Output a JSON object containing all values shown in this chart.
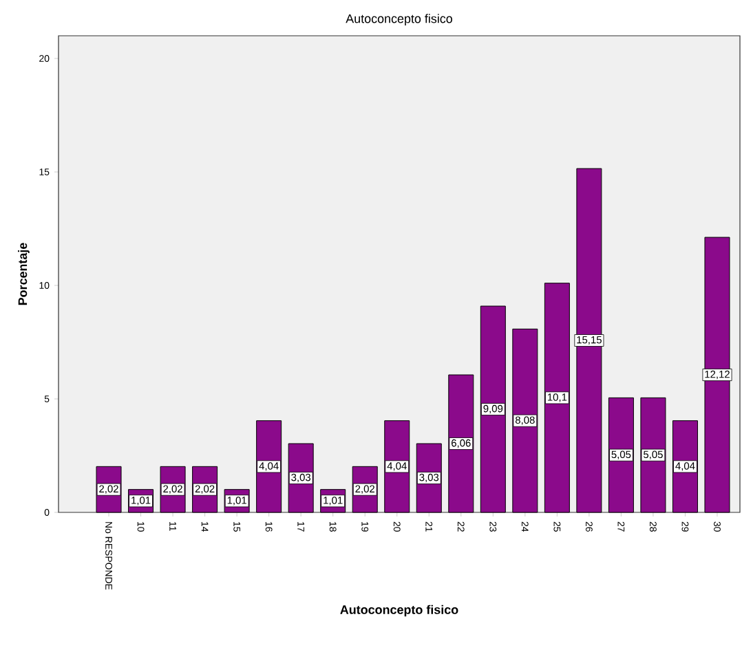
{
  "chart_data": {
    "type": "bar",
    "title": "Autoconcepto fisico",
    "xlabel": "Autoconcepto fisico",
    "ylabel": "Porcentaje",
    "categories": [
      "No RESPONDE",
      "10",
      "11",
      "14",
      "15",
      "16",
      "17",
      "18",
      "19",
      "20",
      "21",
      "22",
      "23",
      "24",
      "25",
      "26",
      "27",
      "28",
      "29",
      "30"
    ],
    "values": [
      2.02,
      1.01,
      2.02,
      2.02,
      1.01,
      4.04,
      3.03,
      1.01,
      2.02,
      4.04,
      3.03,
      6.06,
      9.09,
      8.08,
      10.1,
      15.15,
      5.05,
      5.05,
      4.04,
      12.12
    ],
    "value_labels": [
      "2,02",
      "1,01",
      "2,02",
      "2,02",
      "1,01",
      "4,04",
      "3,03",
      "1,01",
      "2,02",
      "4,04",
      "3,03",
      "6,06",
      "9,09",
      "8,08",
      "10,1",
      "15,15",
      "5,05",
      "5,05",
      "4,04",
      "12,12"
    ],
    "color": "#8b0a8b",
    "ylim": [
      0,
      21
    ],
    "yticks": [
      0,
      5,
      10,
      15,
      20
    ]
  }
}
